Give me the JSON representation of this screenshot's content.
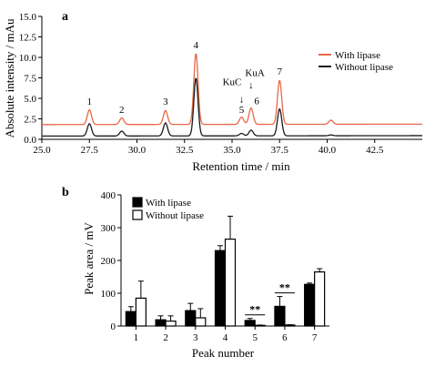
{
  "chart_data": [
    {
      "type": "line",
      "panel_label": "a",
      "xlabel": "Retention time / min",
      "ylabel": "Absolute intensity / mAu",
      "xlim": [
        25.0,
        45.0
      ],
      "ylim": [
        0.0,
        15.0
      ],
      "xticks": [
        "25.0",
        "27.5",
        "30.0",
        "32.5",
        "35.0",
        "37.5",
        "40.0",
        "42.5"
      ],
      "xtick_values": [
        25.0,
        27.5,
        30.0,
        32.5,
        35.0,
        37.5,
        40.0,
        42.5
      ],
      "yticks": [
        "0.0",
        "2.5",
        "5.0",
        "7.5",
        "10.0",
        "12.5",
        "15.0"
      ],
      "ytick_values": [
        0.0,
        2.5,
        5.0,
        7.5,
        10.0,
        12.5,
        15.0
      ],
      "legend_position": "top-right",
      "series": [
        {
          "name": "With lipase",
          "color": "#e8684a",
          "baseline": 1.8,
          "peaks": [
            {
              "rt": 27.5,
              "height": 3.6
            },
            {
              "rt": 29.2,
              "height": 2.6
            },
            {
              "rt": 31.5,
              "height": 3.5
            },
            {
              "rt": 33.1,
              "height": 10.5
            },
            {
              "rt": 35.5,
              "height": 2.7
            },
            {
              "rt": 36.0,
              "height": 3.8
            },
            {
              "rt": 37.5,
              "height": 7.2
            },
            {
              "rt": 40.2,
              "height": 2.3
            }
          ]
        },
        {
          "name": "Without lipase",
          "color": "#1a1a1a",
          "baseline": 0.4,
          "peaks": [
            {
              "rt": 27.5,
              "height": 1.9
            },
            {
              "rt": 29.2,
              "height": 1.0
            },
            {
              "rt": 31.5,
              "height": 2.0
            },
            {
              "rt": 33.1,
              "height": 7.5
            },
            {
              "rt": 35.5,
              "height": 0.7
            },
            {
              "rt": 36.0,
              "height": 1.1
            },
            {
              "rt": 37.5,
              "height": 3.7
            },
            {
              "rt": 40.2,
              "height": 0.5
            }
          ]
        }
      ],
      "annotations": [
        {
          "text": "1",
          "x": 27.5,
          "y": 4.2
        },
        {
          "text": "2",
          "x": 29.2,
          "y": 3.2
        },
        {
          "text": "3",
          "x": 31.5,
          "y": 4.2
        },
        {
          "text": "4",
          "x": 33.1,
          "y": 11.1
        },
        {
          "text": "5",
          "x": 35.5,
          "y": 3.2
        },
        {
          "text": "KuC",
          "x": 35.0,
          "y": 6.6
        },
        {
          "text": "↓",
          "x": 35.5,
          "y": 4.5
        },
        {
          "text": "KuA",
          "x": 36.2,
          "y": 7.7
        },
        {
          "text": "↓",
          "x": 36.0,
          "y": 6.2
        },
        {
          "text": "6",
          "x": 36.3,
          "y": 4.3
        },
        {
          "text": "7",
          "x": 37.5,
          "y": 7.9
        }
      ]
    },
    {
      "type": "bar",
      "panel_label": "b",
      "xlabel": "Peak number",
      "ylabel": "Peak area / mV",
      "ylim": [
        0,
        400
      ],
      "yticks": [
        "0",
        "100",
        "200",
        "300",
        "400"
      ],
      "ytick_values": [
        0,
        100,
        200,
        300,
        400
      ],
      "categories": [
        "1",
        "2",
        "3",
        "4",
        "5",
        "6",
        "7"
      ],
      "legend_position": "top-left",
      "series": [
        {
          "name": "With lipase",
          "color": "#000000",
          "fill": "solid",
          "values": [
            44,
            19,
            47,
            230,
            17,
            60,
            127
          ],
          "errors": [
            15,
            12,
            22,
            15,
            6,
            30,
            4
          ]
        },
        {
          "name": "Without lipase",
          "color": "#ffffff",
          "fill": "hollow",
          "values": [
            85,
            15,
            25,
            265,
            2,
            3,
            165
          ],
          "errors": [
            52,
            16,
            28,
            70,
            1,
            1,
            10
          ]
        }
      ],
      "significance": [
        {
          "category": "5",
          "text": "**"
        },
        {
          "category": "6",
          "text": "**"
        }
      ]
    }
  ]
}
